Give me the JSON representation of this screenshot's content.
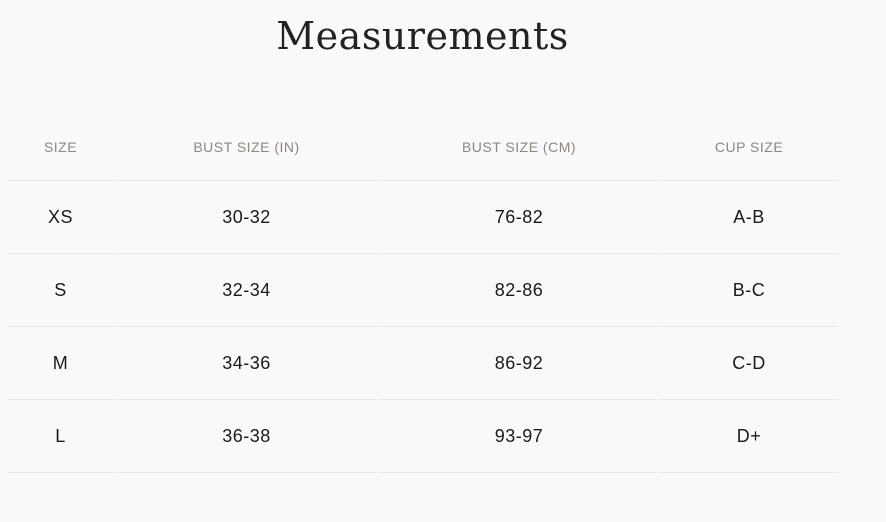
{
  "title": "Measurements",
  "table": {
    "headers": [
      "SIZE",
      "BUST SIZE (IN)",
      "BUST SIZE (CM)",
      "CUP SIZE"
    ],
    "rows": [
      [
        "XS",
        "30-32",
        "76-82",
        "A-B"
      ],
      [
        "S",
        "32-34",
        "82-86",
        "B-C"
      ],
      [
        "M",
        "34-36",
        "86-92",
        "C-D"
      ],
      [
        "L",
        "36-38",
        "93-97",
        "D+"
      ]
    ]
  }
}
